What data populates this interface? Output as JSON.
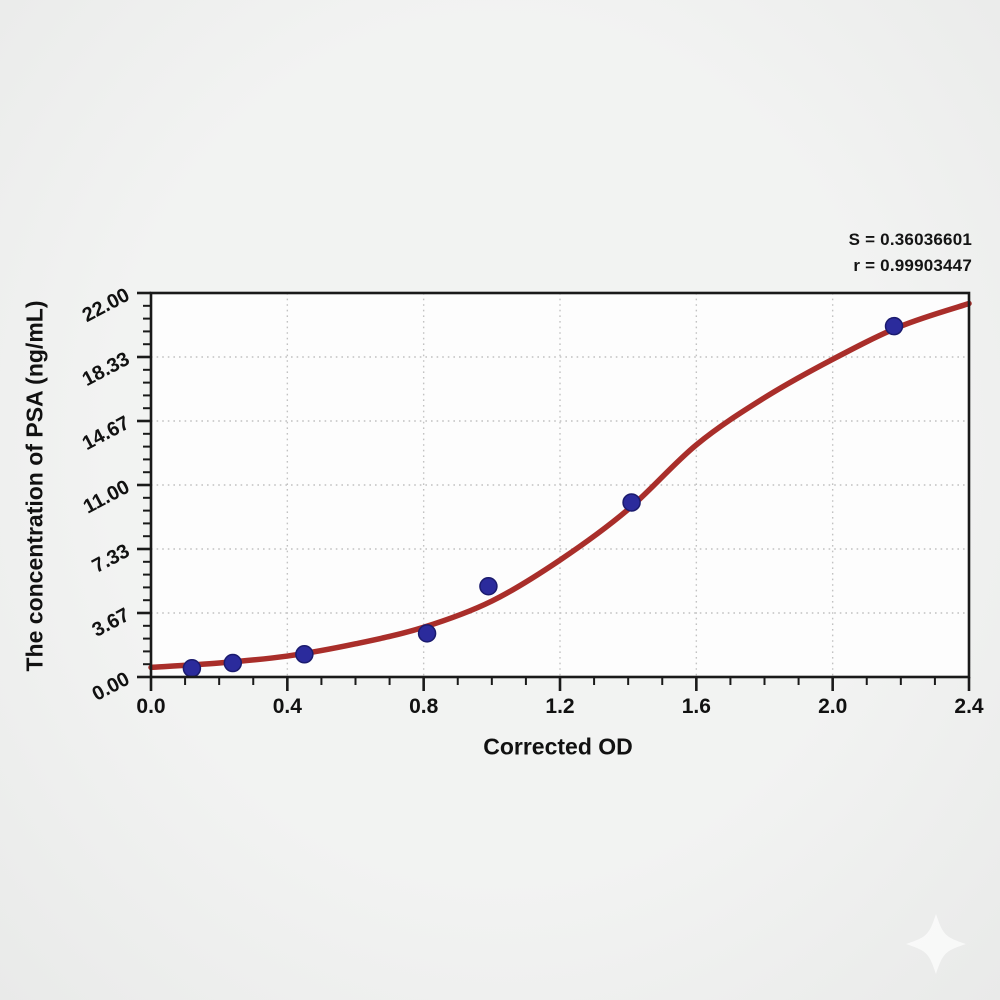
{
  "stats": {
    "s_line": "S = 0.36036601",
    "r_line": "r = 0.99903447"
  },
  "chart_data": {
    "type": "scatter",
    "title": "",
    "xlabel": "Corrected OD",
    "ylabel": "The concentration of PSA (ng/mL)",
    "xlim": [
      0.0,
      2.4
    ],
    "ylim": [
      0.0,
      22.0
    ],
    "x_major_ticks": [
      0.0,
      0.4,
      0.8,
      1.2,
      1.6,
      2.0,
      2.4
    ],
    "x_tick_labels": [
      "0.0",
      "0.4",
      "0.8",
      "1.2",
      "1.6",
      "2.0",
      "2.4"
    ],
    "x_minor_step": 0.1,
    "y_major_ticks": [
      0.0,
      3.6667,
      7.3333,
      11.0,
      14.6667,
      18.3333,
      22.0
    ],
    "y_tick_labels": [
      "0.00",
      "3.67",
      "7.33",
      "11.00",
      "14.67",
      "18.33",
      "22.00"
    ],
    "y_minor_step": 0.7333,
    "grid": "dotted-major",
    "legend": "none",
    "colors": {
      "fit_line": "#a92e2a",
      "data_point": "#2b2b9c",
      "data_point_edge": "#1b1b6e",
      "frame": "#1a1a1a",
      "grid_line": "#c2c2c2",
      "plot_background": "#fdfdfd"
    },
    "series": [
      {
        "name": "standard-points",
        "type": "scatter",
        "points": [
          [
            0.12,
            0.5
          ],
          [
            0.24,
            0.8
          ],
          [
            0.45,
            1.3
          ],
          [
            0.81,
            2.5
          ],
          [
            0.99,
            5.2
          ],
          [
            1.41,
            10.0
          ],
          [
            2.18,
            20.1
          ]
        ]
      },
      {
        "name": "4pl-fit-curve",
        "type": "line",
        "points": [
          [
            0.0,
            0.55
          ],
          [
            0.2,
            0.8
          ],
          [
            0.4,
            1.2
          ],
          [
            0.6,
            1.9
          ],
          [
            0.8,
            2.85
          ],
          [
            1.0,
            4.35
          ],
          [
            1.2,
            6.7
          ],
          [
            1.4,
            9.6
          ],
          [
            1.6,
            13.3
          ],
          [
            1.8,
            16.0
          ],
          [
            2.0,
            18.2
          ],
          [
            2.2,
            20.1
          ],
          [
            2.4,
            21.4
          ]
        ]
      }
    ],
    "annotations": [
      "S = 0.36036601",
      "r = 0.99903447"
    ]
  },
  "watermark": {
    "icon": "sparkle-icon",
    "color": "#ffffff"
  }
}
